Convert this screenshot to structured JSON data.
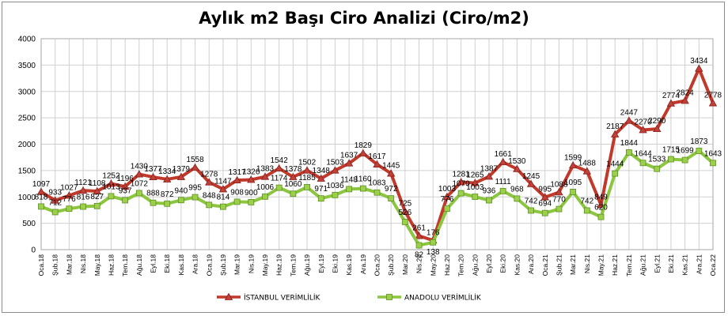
{
  "chart_data": {
    "type": "line",
    "title": "Aylık m2 Başı Ciro Analizi (Ciro/m2)",
    "xlabel": "",
    "ylabel": "",
    "ylim": [
      0,
      4000
    ],
    "yticks": [
      0,
      500,
      1000,
      1500,
      2000,
      2500,
      3000,
      3500,
      4000
    ],
    "grid": true,
    "legend": "bottom",
    "categories": [
      "Oca.18",
      "Şub.18",
      "Mar.18",
      "Nis.18",
      "May.18",
      "Haz.18",
      "Tem.18",
      "Ağu.18",
      "Eyl.18",
      "Eki.18",
      "Kas.18",
      "Ara.18",
      "Oca.19",
      "Şub.19",
      "Mar.19",
      "Nis.19",
      "May.19",
      "Haz.19",
      "Tem.19",
      "Ağu.19",
      "Eyl.19",
      "Eki.19",
      "Kas.19",
      "Ara.19",
      "Oca.20",
      "Şub.20",
      "Mar.20",
      "Nis.20",
      "May.20",
      "Haz.20",
      "Tem.20",
      "Ağu.20",
      "Eyl.20",
      "Eki.20",
      "Kas.20",
      "Ara.20",
      "Oca.21",
      "Şub.21",
      "Mar.21",
      "Nis.21",
      "May.21",
      "Haz.21",
      "Tem.21",
      "Ağu.21",
      "Eyl.21",
      "Eki.21",
      "Kas.21",
      "Ara.21",
      "Oca.22"
    ],
    "series": [
      {
        "name": "İSTANBUL VERİMLİLİK",
        "color": "#c0392b",
        "marker": "triangle",
        "values": [
          1097,
          933,
          1027,
          1121,
          1108,
          1252,
          1196,
          1430,
          1377,
          1334,
          1379,
          1558,
          1278,
          1147,
          1317,
          1326,
          1383,
          1542,
          1378,
          1502,
          1348,
          1503,
          1637,
          1829,
          1617,
          1445,
          725,
          261,
          176,
          1003,
          1281,
          1265,
          1387,
          1661,
          1530,
          1245,
          995,
          1088,
          1599,
          1488,
          849,
          2187,
          2447,
          2270,
          2290,
          2774,
          2824,
          3434,
          2778
        ]
      },
      {
        "name": "ANADOLU VERİMLİLİK",
        "color": "#8cc63f",
        "marker": "square",
        "values": [
          818,
          712,
          776,
          816,
          827,
          1013,
          937,
          1072,
          888,
          872,
          940,
          995,
          848,
          814,
          908,
          900,
          1006,
          1174,
          1060,
          1185,
          971,
          1036,
          1148,
          1160,
          1083,
          972,
          526,
          82,
          138,
          776,
          1070,
          1003,
          936,
          1111,
          968,
          742,
          694,
          770,
          1095,
          742,
          620,
          1444,
          1844,
          1644,
          1533,
          1715,
          1699,
          1873,
          1643
        ]
      }
    ]
  }
}
